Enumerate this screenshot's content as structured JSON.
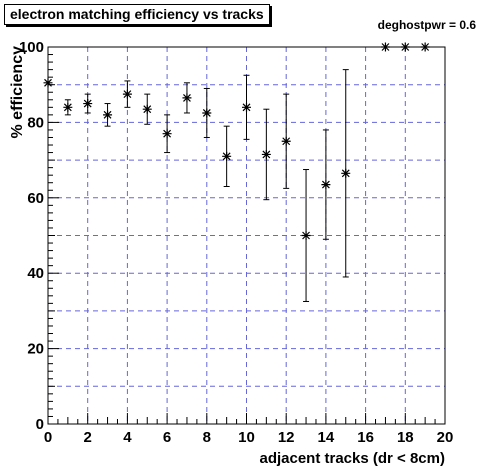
{
  "chart_data": {
    "type": "scatter",
    "title": "electron matching efficiency vs tracks",
    "annotation": "deghostpwr = 0.6",
    "xlabel": "adjacent tracks (dr < 8cm)",
    "ylabel": "% efficiency",
    "xlim": [
      0,
      20
    ],
    "ylim": [
      0,
      100
    ],
    "x_ticks": [
      "0",
      "2",
      "4",
      "6",
      "8",
      "10",
      "12",
      "14",
      "16",
      "18",
      "20"
    ],
    "y_ticks": [
      "0",
      "20",
      "40",
      "60",
      "80",
      "100"
    ],
    "grid": true,
    "marker": "asterisk",
    "colors": {
      "marker": "#000000",
      "grid": "#6666dd",
      "axes": "#000000",
      "background": "#ffffff"
    },
    "points": [
      {
        "x": 0,
        "y": 90.5,
        "err": 0
      },
      {
        "x": 1,
        "y": 84,
        "err": 2
      },
      {
        "x": 2,
        "y": 85,
        "err": 2.5
      },
      {
        "x": 3,
        "y": 82,
        "err": 3
      },
      {
        "x": 4,
        "y": 87.5,
        "err": 3.5
      },
      {
        "x": 5,
        "y": 83.5,
        "err": 4
      },
      {
        "x": 6,
        "y": 77,
        "err": 5
      },
      {
        "x": 7,
        "y": 86.5,
        "err": 4
      },
      {
        "x": 8,
        "y": 82.5,
        "err": 6.5
      },
      {
        "x": 9,
        "y": 71,
        "err": 8
      },
      {
        "x": 10,
        "y": 84,
        "err": 8.5
      },
      {
        "x": 11,
        "y": 71.5,
        "err": 12
      },
      {
        "x": 12,
        "y": 75,
        "err": 12.5
      },
      {
        "x": 13,
        "y": 50,
        "err": 17.5
      },
      {
        "x": 14,
        "y": 63.5,
        "err": 14.5
      },
      {
        "x": 15,
        "y": 66.5,
        "err": 27.5
      },
      {
        "x": 17,
        "y": 100,
        "err": 0
      },
      {
        "x": 18,
        "y": 100,
        "err": 0
      },
      {
        "x": 19,
        "y": 100,
        "err": 0
      }
    ]
  }
}
